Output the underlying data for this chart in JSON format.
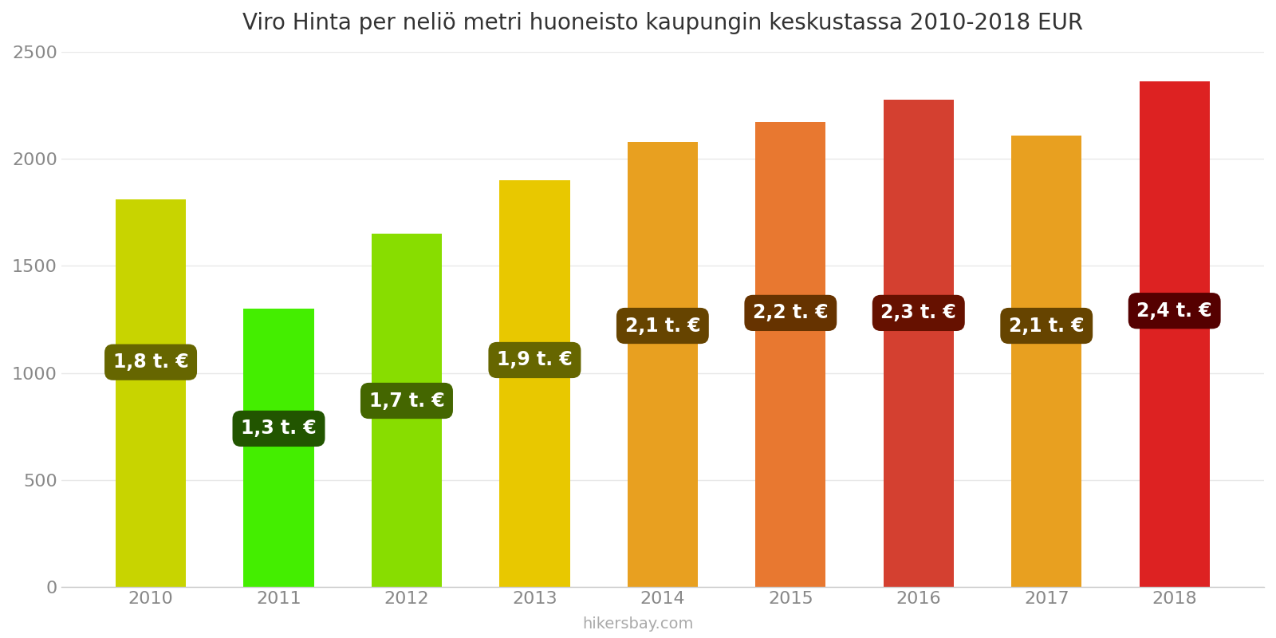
{
  "title": "Viro Hinta per neliö metri huoneisto kaupungin keskustassa 2010-2018 EUR",
  "years": [
    2010,
    2011,
    2012,
    2013,
    2014,
    2015,
    2016,
    2017,
    2018
  ],
  "values": [
    1810,
    1300,
    1650,
    1900,
    2080,
    2170,
    2275,
    2110,
    2360
  ],
  "bar_colors": [
    "#c8d400",
    "#44ee00",
    "#88dd00",
    "#e8c800",
    "#e8a020",
    "#e87830",
    "#d44030",
    "#e8a020",
    "#dd2222"
  ],
  "label_texts": [
    "1,8 t. €",
    "1,3 t. €",
    "1,7 t. €",
    "1,9 t. €",
    "2,1 t. €",
    "2,2 t. €",
    "2,3 t. €",
    "2,1 t. €",
    "2,4 t. €"
  ],
  "label_y_positions": [
    1050,
    740,
    870,
    1060,
    1220,
    1280,
    1280,
    1220,
    1290
  ],
  "label_box_colors": [
    "#666600",
    "#225500",
    "#446600",
    "#666600",
    "#664400",
    "#663300",
    "#661100",
    "#664400",
    "#550000"
  ],
  "label_text_color": "#ffffff",
  "ylim": [
    0,
    2500
  ],
  "yticks": [
    0,
    500,
    1000,
    1500,
    2000,
    2500
  ],
  "background_color": "#ffffff",
  "grid_color": "#e8e8e8",
  "watermark": "hikersbay.com",
  "title_fontsize": 20,
  "tick_fontsize": 16,
  "label_fontsize": 17,
  "watermark_fontsize": 14,
  "bar_width": 0.55,
  "xlim": [
    2009.3,
    2018.7
  ]
}
